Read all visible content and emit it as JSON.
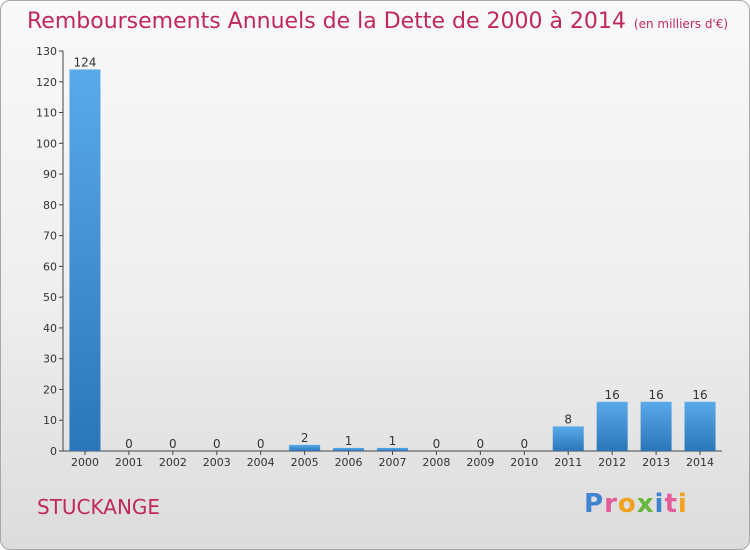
{
  "title": {
    "main": "Remboursements Annuels de la Dette de 2000 à 2014",
    "unit": "(en milliers d'€)"
  },
  "city": "STUCKANGE",
  "logo": {
    "text": "Proxiti"
  },
  "colors": {
    "title": "#c0285a",
    "bar_light": "#5aaaea",
    "bar_dark": "#2a76b8",
    "axis": "#444444"
  },
  "chart_data": {
    "type": "bar",
    "title": "Remboursements Annuels de la Dette de 2000 à 2014",
    "subtitle": "(en milliers d'€)",
    "categories": [
      "2000",
      "2001",
      "2002",
      "2003",
      "2004",
      "2005",
      "2006",
      "2007",
      "2008",
      "2009",
      "2010",
      "2011",
      "2012",
      "2013",
      "2014"
    ],
    "values": [
      124,
      0,
      0,
      0,
      0,
      2,
      1,
      1,
      0,
      0,
      0,
      8,
      16,
      16,
      16
    ],
    "data_labels": [
      "124",
      "0",
      "0",
      "0",
      "0",
      "2",
      "1",
      "1",
      "0",
      "0",
      "0",
      "8",
      "16",
      "16",
      "16"
    ],
    "yticks": [
      0,
      10,
      20,
      30,
      40,
      50,
      60,
      70,
      80,
      90,
      100,
      110,
      120,
      130
    ],
    "ylim": [
      0,
      130
    ],
    "xlabel": "",
    "ylabel": "",
    "grid": false,
    "legend": "none"
  }
}
